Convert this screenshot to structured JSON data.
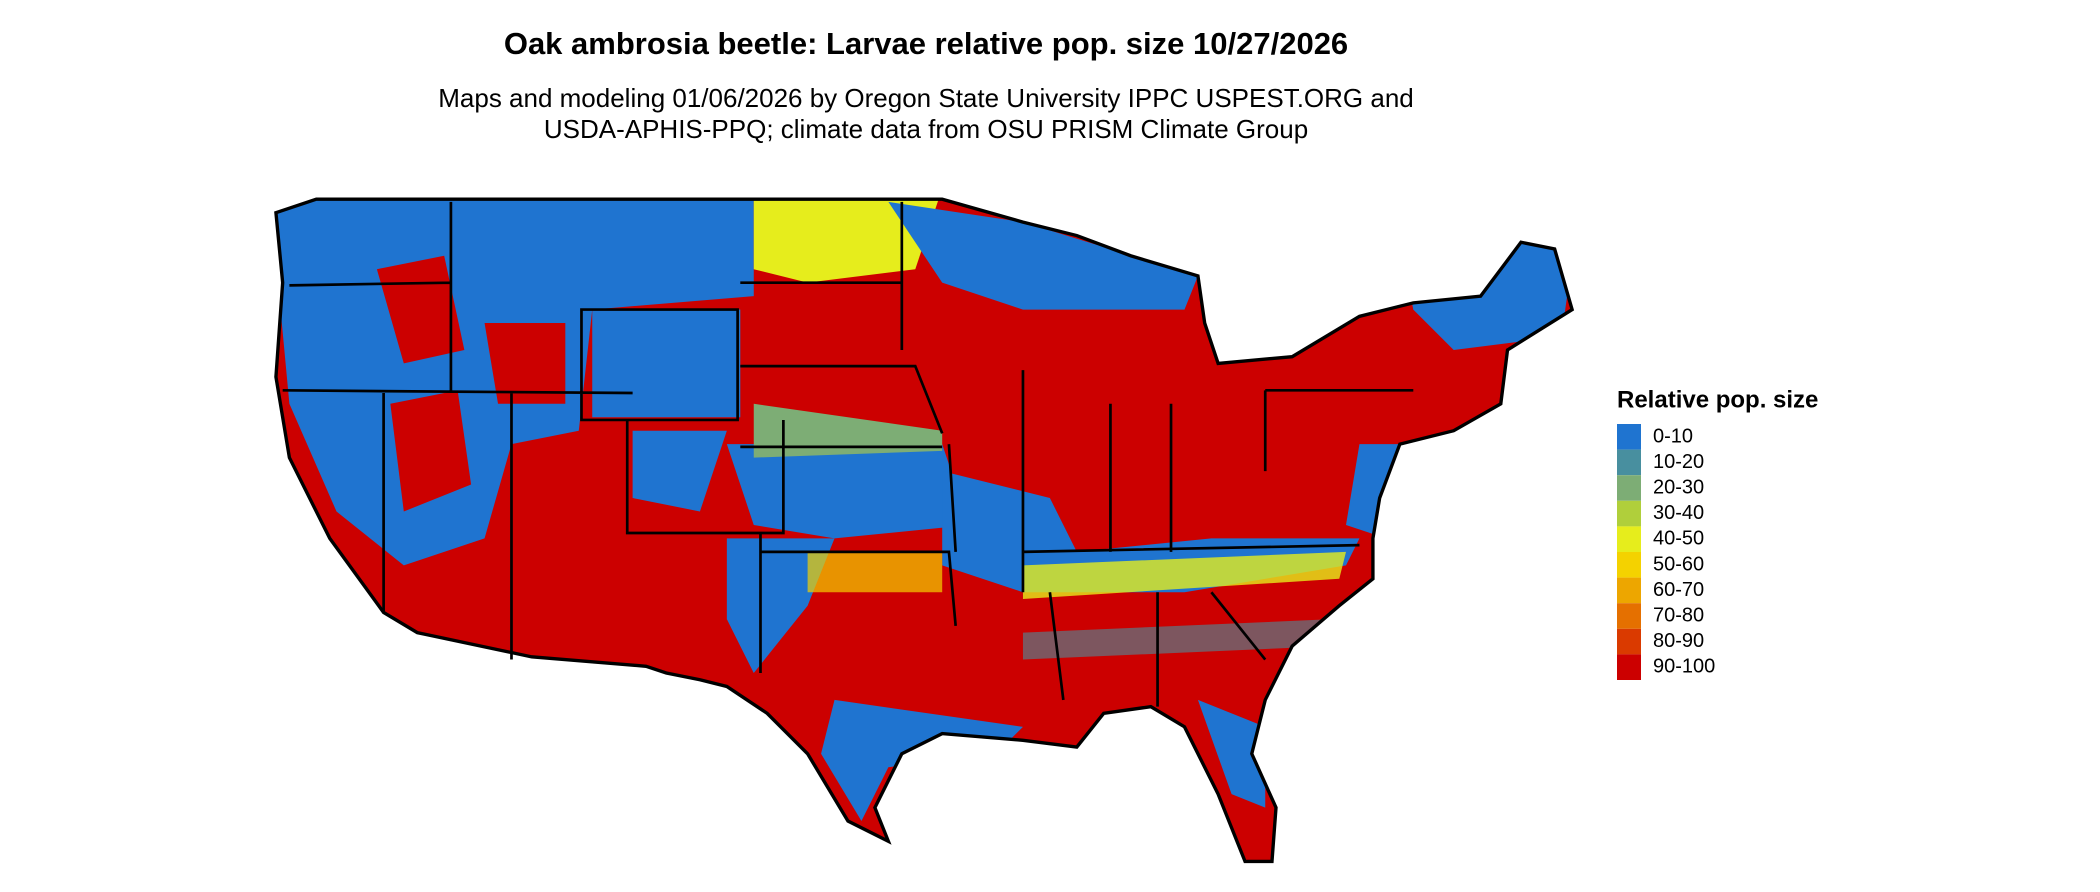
{
  "title": "Oak ambrosia beetle: Larvae relative pop. size 10/27/2026",
  "subtitle": [
    "Maps and modeling 01/06/2026 by Oregon State University IPPC USPEST.ORG and",
    "USDA-APHIS-PPQ; climate data from OSU PRISM Climate Group"
  ],
  "legend": {
    "title": "Relative pop. size",
    "items": [
      {
        "label": "0-10",
        "color": "#1f74d0"
      },
      {
        "label": "10-20",
        "color": "#488f9f"
      },
      {
        "label": "20-30",
        "color": "#7dad75"
      },
      {
        "label": "30-40",
        "color": "#b0cf3b"
      },
      {
        "label": "40-50",
        "color": "#e6ed1c"
      },
      {
        "label": "50-60",
        "color": "#f4d200"
      },
      {
        "label": "60-70",
        "color": "#eda600"
      },
      {
        "label": "70-80",
        "color": "#e57000"
      },
      {
        "label": "80-90",
        "color": "#da3a00"
      },
      {
        "label": "90-100",
        "color": "#cc0000"
      }
    ]
  }
}
